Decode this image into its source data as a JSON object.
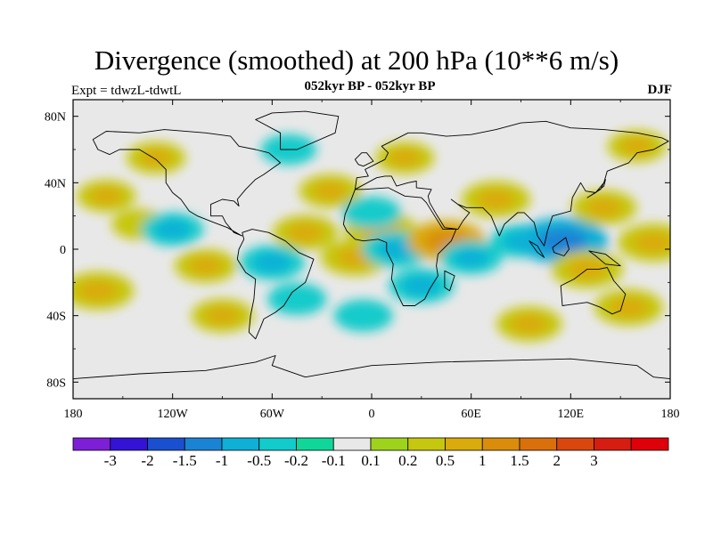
{
  "title": "Divergence (smoothed) at 200 hPa (10**6 m/s)",
  "subtitle_left": "Expt = tdwzL-tdwtL",
  "subtitle_center": "052kyr BP - 052kyr BP",
  "season": "DJF",
  "lat_labels": [
    "80N",
    "40N",
    "0",
    "40S",
    "80S"
  ],
  "lon_labels": [
    "180",
    "120W",
    "60W",
    "0",
    "60E",
    "120E",
    "180"
  ],
  "colorbar": {
    "colors": [
      "#7d1fd6",
      "#3413d6",
      "#1a50d0",
      "#1b83d4",
      "#0fb0d6",
      "#12cbcb",
      "#10d69a",
      "#e8e8e8",
      "#9ed31c",
      "#c6c70f",
      "#d9ab0c",
      "#d98d0b",
      "#d9700c",
      "#d9470f",
      "#d61d12",
      "#e00009"
    ],
    "labels": [
      "-3",
      "-2",
      "-1.5",
      "-1",
      "-0.5",
      "-0.2",
      "-0.1",
      "0.1",
      "0.2",
      "0.5",
      "1",
      "1.5",
      "2",
      "3"
    ]
  },
  "chart_data": {
    "type": "heatmap",
    "title": "Divergence (smoothed) at 200 hPa (10**6 m/s)",
    "xlabel": "",
    "ylabel": "",
    "xlim": [
      -180,
      180
    ],
    "ylim": [
      -90,
      90
    ],
    "levels": [
      -3,
      -2,
      -1.5,
      -1,
      -0.5,
      -0.2,
      -0.1,
      0.1,
      0.2,
      0.5,
      1,
      1.5,
      2,
      3
    ],
    "anomalies": [
      {
        "lon": 170,
        "lat": 4,
        "value": 0.9
      },
      {
        "lon": -140,
        "lat": 15,
        "value": 0.4
      },
      {
        "lon": -160,
        "lat": 32,
        "value": 0.5
      },
      {
        "lon": -120,
        "lat": 12,
        "value": -0.6
      },
      {
        "lon": -100,
        "lat": -10,
        "value": 0.6
      },
      {
        "lon": -60,
        "lat": -8,
        "value": -0.7
      },
      {
        "lon": -40,
        "lat": 10,
        "value": 0.7
      },
      {
        "lon": -25,
        "lat": 35,
        "value": 0.6
      },
      {
        "lon": -10,
        "lat": -5,
        "value": 0.8
      },
      {
        "lon": 5,
        "lat": 12,
        "value": 0.9
      },
      {
        "lon": 15,
        "lat": 0,
        "value": -0.8
      },
      {
        "lon": 30,
        "lat": -22,
        "value": -0.7
      },
      {
        "lon": 45,
        "lat": 5,
        "value": 1.1
      },
      {
        "lon": 60,
        "lat": -5,
        "value": -0.6
      },
      {
        "lon": 75,
        "lat": 30,
        "value": 0.8
      },
      {
        "lon": 90,
        "lat": 5,
        "value": -0.6
      },
      {
        "lon": 115,
        "lat": 5,
        "value": -1.5
      },
      {
        "lon": 130,
        "lat": -12,
        "value": 0.9
      },
      {
        "lon": 140,
        "lat": 25,
        "value": 0.7
      },
      {
        "lon": 155,
        "lat": -35,
        "value": 0.8
      },
      {
        "lon": -165,
        "lat": -25,
        "value": 0.9
      },
      {
        "lon": -90,
        "lat": -40,
        "value": 0.6
      },
      {
        "lon": -5,
        "lat": -40,
        "value": -0.5
      },
      {
        "lon": 95,
        "lat": -45,
        "value": 0.7
      },
      {
        "lon": -130,
        "lat": 55,
        "value": 0.5
      },
      {
        "lon": -50,
        "lat": 60,
        "value": -0.4
      },
      {
        "lon": 20,
        "lat": 55,
        "value": 0.5
      },
      {
        "lon": 160,
        "lat": 62,
        "value": 0.5
      },
      {
        "lon": -45,
        "lat": -30,
        "value": -0.5
      },
      {
        "lon": 0,
        "lat": 22,
        "value": -0.5
      }
    ]
  }
}
